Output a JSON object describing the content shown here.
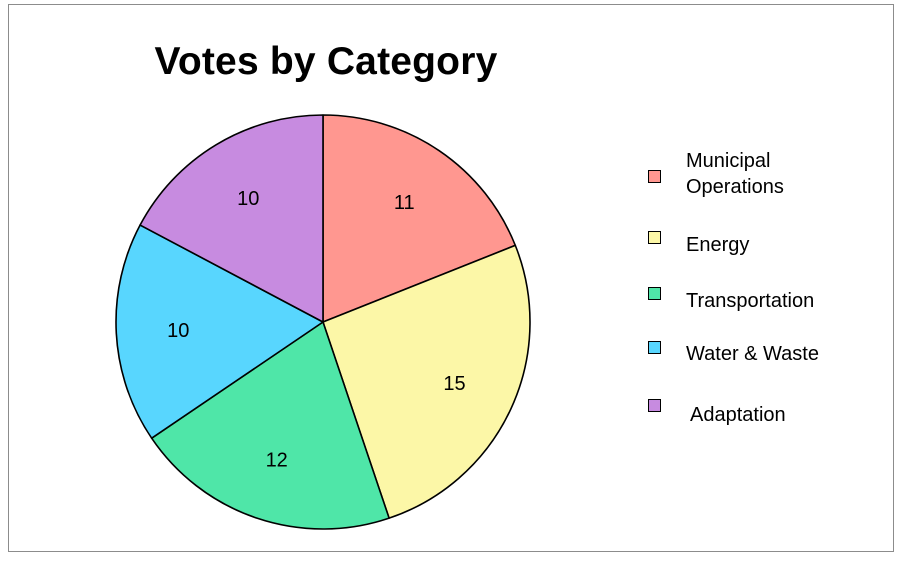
{
  "chart_data": {
    "type": "pie",
    "title": "Votes by Category",
    "slices": [
      {
        "label": "Municipal Operations",
        "value": 11,
        "color": "#ff9790"
      },
      {
        "label": "Energy",
        "value": 15,
        "color": "#fcf7a7"
      },
      {
        "label": "Transportation",
        "value": 12,
        "color": "#4fe6a8"
      },
      {
        "label": "Water & Waste",
        "value": 10,
        "color": "#58d6fe"
      },
      {
        "label": "Adaptation",
        "value": 10,
        "color": "#c78be0"
      }
    ],
    "legend_position": "right",
    "data_labels": "values"
  }
}
